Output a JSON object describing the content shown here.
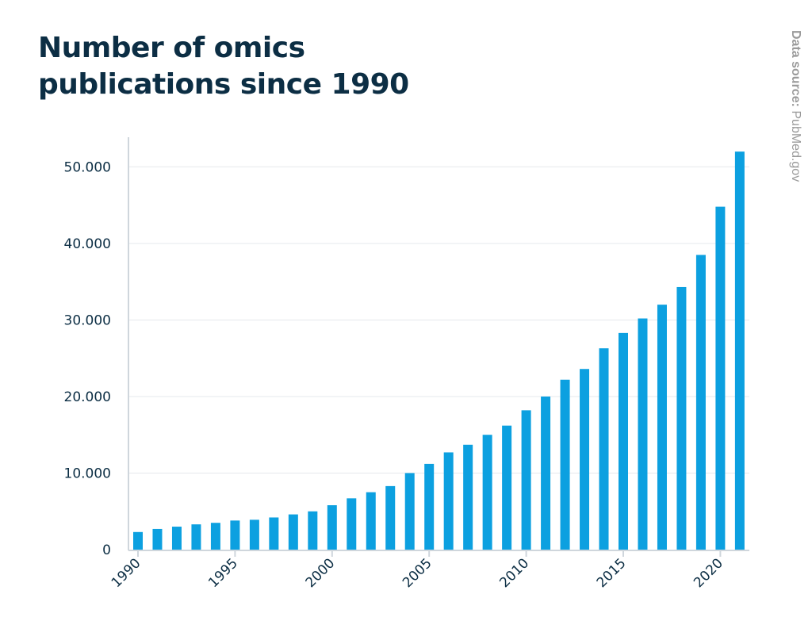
{
  "source": {
    "label": "Data source:",
    "value": " PubMed.gov"
  },
  "chart_data": {
    "type": "bar",
    "title": "Number of omics publications since 1990",
    "xlabel": "",
    "ylabel": "",
    "ylim": [
      0,
      54500
    ],
    "yticks": [
      0,
      10000,
      20000,
      30000,
      40000,
      50000
    ],
    "ytick_labels": [
      "0",
      "10.000",
      "20.000",
      "30.000",
      "40.000",
      "50.000"
    ],
    "xtick_labels": [
      "1990",
      "1995",
      "2000",
      "2005",
      "2010",
      "2015",
      "2020"
    ],
    "categories": [
      1990,
      1991,
      1992,
      1993,
      1994,
      1995,
      1996,
      1997,
      1998,
      1999,
      2000,
      2001,
      2002,
      2003,
      2004,
      2005,
      2006,
      2007,
      2008,
      2009,
      2010,
      2011,
      2012,
      2013,
      2014,
      2015,
      2016,
      2017,
      2018,
      2019,
      2020,
      2021
    ],
    "values": [
      2300,
      2700,
      3000,
      3300,
      3500,
      3800,
      3900,
      4200,
      4600,
      5000,
      5800,
      6700,
      7500,
      8300,
      10000,
      11200,
      12700,
      13700,
      15000,
      16200,
      18200,
      20000,
      22200,
      23600,
      26300,
      28300,
      30200,
      32000,
      34300,
      38500,
      44800,
      52000
    ],
    "bar_color": "#0ca0e0",
    "grid": true
  }
}
